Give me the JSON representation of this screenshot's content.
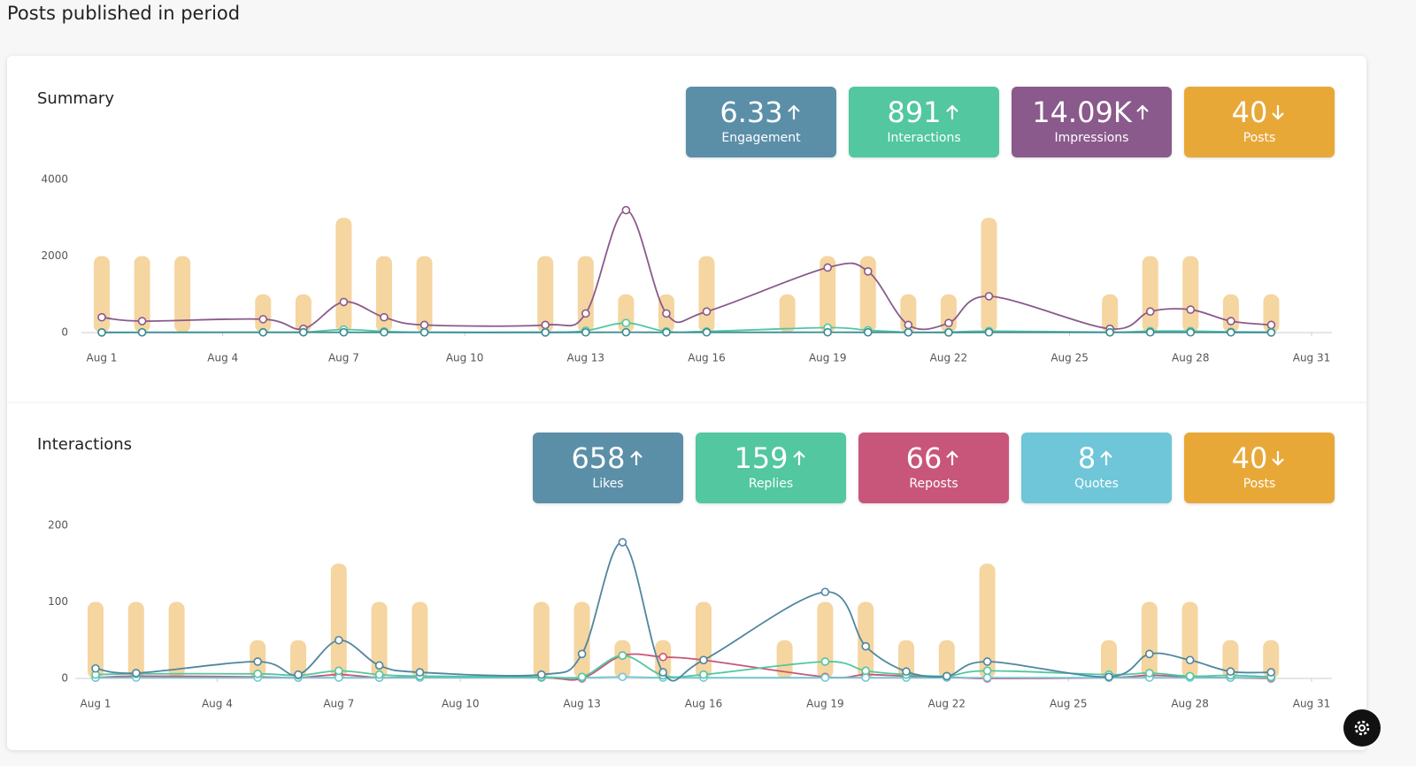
{
  "title": "Posts published in period",
  "chart_data": [
    {
      "type": "combo",
      "title": "Summary",
      "stats": [
        {
          "value": "6.33",
          "label": "Engagement",
          "trend": "up",
          "color": "#5b8fa8"
        },
        {
          "value": "891",
          "label": "Interactions",
          "trend": "up",
          "color": "#52c7a0"
        },
        {
          "value": "14.09K",
          "label": "Impressions",
          "trend": "up",
          "color": "#8a5a8c"
        },
        {
          "value": "40",
          "label": "Posts",
          "trend": "down",
          "color": "#e8a838"
        }
      ],
      "x": [
        1,
        2,
        5,
        6,
        7,
        8,
        9,
        12,
        13,
        14,
        15,
        16,
        19,
        20,
        21,
        22,
        23,
        26,
        27,
        28,
        29,
        30
      ],
      "xlim": [
        1,
        31
      ],
      "xticks": [
        {
          "value": 1,
          "label": "Aug 1"
        },
        {
          "value": 4,
          "label": "Aug 4"
        },
        {
          "value": 7,
          "label": "Aug 7"
        },
        {
          "value": 10,
          "label": "Aug 10"
        },
        {
          "value": 13,
          "label": "Aug 13"
        },
        {
          "value": 16,
          "label": "Aug 16"
        },
        {
          "value": 19,
          "label": "Aug 19"
        },
        {
          "value": 22,
          "label": "Aug 22"
        },
        {
          "value": 25,
          "label": "Aug 25"
        },
        {
          "value": 28,
          "label": "Aug 28"
        },
        {
          "value": 31,
          "label": "Aug 31"
        }
      ],
      "ylim": [
        0,
        4000
      ],
      "yticks": [
        0,
        2000,
        4000
      ],
      "y2lim": [
        0,
        4
      ],
      "grid": false,
      "series": [
        {
          "type": "bar",
          "axis": "y2",
          "color": "#f5d5a0",
          "x": [
            1,
            2,
            3,
            5,
            6,
            7,
            8,
            9,
            12,
            13,
            14,
            15,
            16,
            18,
            19,
            20,
            21,
            22,
            23,
            26,
            27,
            28,
            29,
            30
          ],
          "values": [
            2,
            2,
            2,
            1,
            1,
            3,
            2,
            2,
            2,
            2,
            1,
            1,
            2,
            1,
            2,
            2,
            1,
            1,
            3,
            1,
            2,
            2,
            1,
            1
          ]
        },
        {
          "type": "line",
          "color": "#8a5a8c",
          "values": [
            400,
            300,
            350,
            100,
            800,
            400,
            200,
            200,
            500,
            3200,
            500,
            550,
            1700,
            1600,
            200,
            250,
            950,
            100,
            550,
            600,
            300,
            200
          ]
        },
        {
          "type": "line",
          "color": "#52c7a0",
          "values": [
            5,
            5,
            10,
            10,
            80,
            30,
            10,
            10,
            50,
            250,
            30,
            30,
            130,
            60,
            10,
            10,
            40,
            10,
            40,
            40,
            20,
            15
          ]
        },
        {
          "type": "line",
          "color": "#3a8a96",
          "values": [
            4,
            6,
            5,
            8,
            7,
            6,
            5,
            4,
            6,
            9,
            5,
            6,
            8,
            7,
            5,
            4,
            6,
            5,
            7,
            6,
            5,
            4
          ]
        }
      ]
    },
    {
      "type": "combo",
      "title": "Interactions",
      "stats": [
        {
          "value": "658",
          "label": "Likes",
          "trend": "up",
          "color": "#5b8fa8"
        },
        {
          "value": "159",
          "label": "Replies",
          "trend": "up",
          "color": "#52c7a0"
        },
        {
          "value": "66",
          "label": "Reposts",
          "trend": "up",
          "color": "#c8567a"
        },
        {
          "value": "8",
          "label": "Quotes",
          "trend": "up",
          "color": "#6ec6d8"
        },
        {
          "value": "40",
          "label": "Posts",
          "trend": "down",
          "color": "#e8a838"
        }
      ],
      "x": [
        1,
        2,
        5,
        6,
        7,
        8,
        9,
        12,
        13,
        14,
        15,
        16,
        19,
        20,
        21,
        22,
        23,
        26,
        27,
        28,
        29,
        30
      ],
      "xlim": [
        1,
        31
      ],
      "xticks": [
        {
          "value": 1,
          "label": "Aug 1"
        },
        {
          "value": 4,
          "label": "Aug 4"
        },
        {
          "value": 7,
          "label": "Aug 7"
        },
        {
          "value": 10,
          "label": "Aug 10"
        },
        {
          "value": 13,
          "label": "Aug 13"
        },
        {
          "value": 16,
          "label": "Aug 16"
        },
        {
          "value": 19,
          "label": "Aug 19"
        },
        {
          "value": 22,
          "label": "Aug 22"
        },
        {
          "value": 25,
          "label": "Aug 25"
        },
        {
          "value": 28,
          "label": "Aug 28"
        },
        {
          "value": 31,
          "label": "Aug 31"
        }
      ],
      "ylim": [
        0,
        200
      ],
      "yticks": [
        0,
        100,
        200
      ],
      "y2lim": [
        0,
        4
      ],
      "grid": false,
      "series": [
        {
          "type": "bar",
          "axis": "y2",
          "color": "#f5d5a0",
          "x": [
            1,
            2,
            3,
            5,
            6,
            7,
            8,
            9,
            12,
            13,
            14,
            15,
            16,
            18,
            19,
            20,
            21,
            22,
            23,
            26,
            27,
            28,
            29,
            30
          ],
          "values": [
            2,
            2,
            2,
            1,
            1,
            3,
            2,
            2,
            2,
            2,
            1,
            1,
            2,
            1,
            2,
            2,
            1,
            1,
            3,
            1,
            2,
            2,
            1,
            1
          ]
        },
        {
          "type": "line",
          "color": "#c8567a",
          "values": [
            1,
            3,
            2,
            1,
            5,
            1,
            2,
            1,
            0,
            30,
            28,
            24,
            2,
            5,
            3,
            2,
            0,
            1,
            4,
            2,
            1,
            0
          ]
        },
        {
          "type": "line",
          "color": "#6ec6d8",
          "values": [
            1,
            1,
            1,
            1,
            1,
            1,
            1,
            1,
            1,
            2,
            1,
            1,
            1,
            1,
            1,
            1,
            1,
            1,
            1,
            1,
            1,
            1
          ]
        },
        {
          "type": "line",
          "color": "#52c7a0",
          "values": [
            5,
            6,
            6,
            4,
            10,
            5,
            3,
            2,
            2,
            30,
            4,
            5,
            22,
            10,
            5,
            3,
            10,
            5,
            7,
            3,
            4,
            2
          ]
        },
        {
          "type": "line",
          "color": "#4f86a0",
          "values": [
            13,
            7,
            22,
            5,
            50,
            17,
            8,
            5,
            32,
            178,
            8,
            24,
            113,
            42,
            9,
            3,
            22,
            2,
            32,
            24,
            9,
            8
          ]
        }
      ]
    }
  ]
}
